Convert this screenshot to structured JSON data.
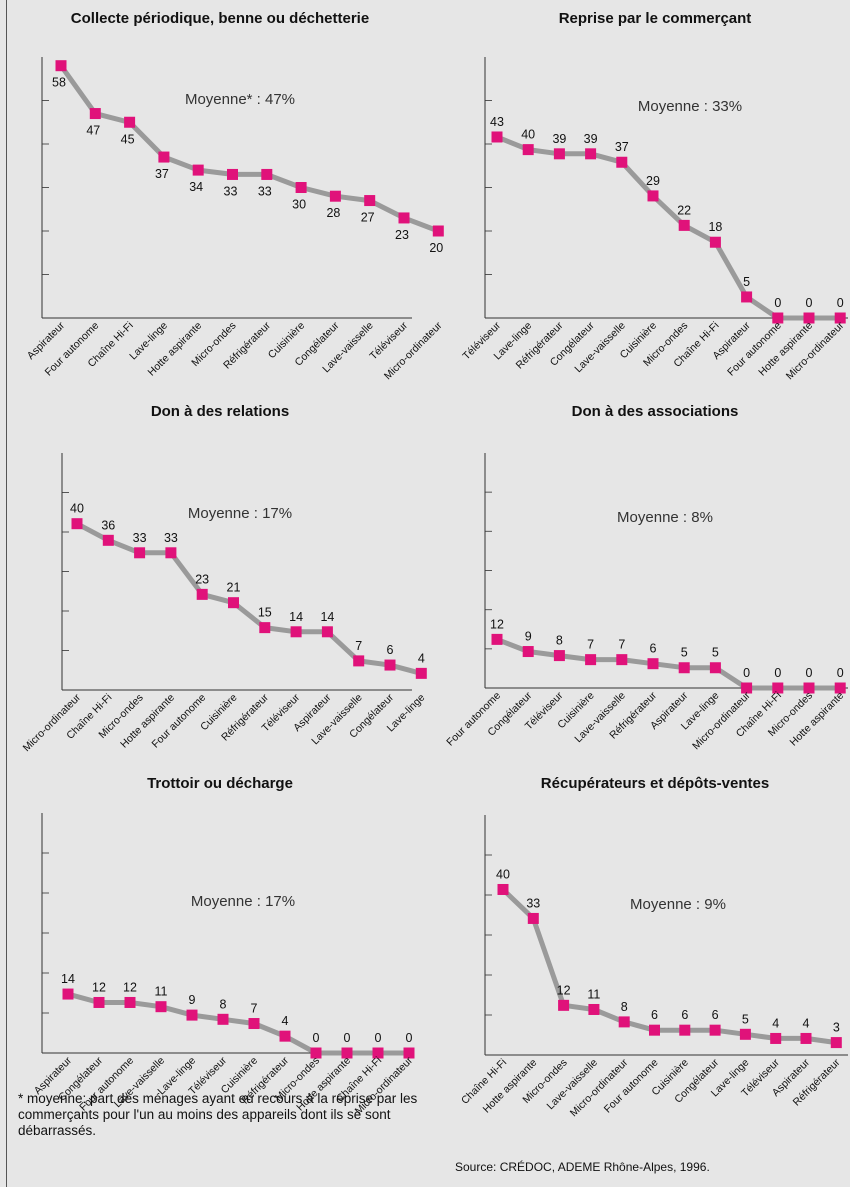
{
  "colors": {
    "line": "#9a9a9a",
    "marker": "#e0127a",
    "axis": "#333333",
    "grid": "#555555"
  },
  "footnote": "* moyenne: part des ménages ayant eu recours à la reprise par les commerçants pour l'un au moins des appareils dont ils se sont débarrassés.",
  "source": "Source: CRÉDOC, ADEME Rhône-Alpes, 1996.",
  "chart_data": [
    {
      "type": "line",
      "title": "Collecte périodique, benne ou déchetterie",
      "annotation": "Moyenne* : 47%",
      "ylim": [
        0,
        60
      ],
      "grid": true,
      "categories": [
        "Aspirateur",
        "Four autonome",
        "Chaîne Hi-Fi",
        "Lave-linge",
        "Hotte aspirante",
        "Micro-ondes",
        "Réfrigérateur",
        "Cuisinière",
        "Congélateur",
        "Lave-vaisselle",
        "Téléviseur",
        "Micro-ordinateur"
      ],
      "values": [
        58,
        47,
        45,
        37,
        34,
        33,
        33,
        30,
        28,
        27,
        23,
        20
      ]
    },
    {
      "type": "line",
      "title": "Reprise par le commerçant",
      "annotation": "Moyenne : 33%",
      "ylim": [
        0,
        62
      ],
      "grid": true,
      "categories": [
        "Téléviseur",
        "Lave-linge",
        "Réfrigérateur",
        "Congélateur",
        "Lave-vaisselle",
        "Cuisinière",
        "Micro-ondes",
        "Chaîne Hi-Fi",
        "Aspirateur",
        "Four autonome",
        "Hotte aspirante",
        "Micro-ordinateur"
      ],
      "values": [
        43,
        40,
        39,
        39,
        37,
        29,
        22,
        18,
        5,
        0,
        0,
        0
      ]
    },
    {
      "type": "line",
      "title": "Don à des relations",
      "annotation": "Moyenne : 17%",
      "ylim": [
        0,
        57
      ],
      "grid": true,
      "categories": [
        "Micro-ordinateur",
        "Chaîne Hi-Fi",
        "Micro-ondes",
        "Hotte aspirante",
        "Four autonome",
        "Cuisinière",
        "Réfrigérateur",
        "Téléviseur",
        "Aspirateur",
        "Lave-vaisselle",
        "Congélateur",
        "Lave-linge"
      ],
      "values": [
        40,
        36,
        33,
        33,
        23,
        21,
        15,
        14,
        14,
        7,
        6,
        4
      ]
    },
    {
      "type": "line",
      "title": "Don à des associations",
      "annotation": "Moyenne : 8%",
      "ylim": [
        0,
        58
      ],
      "grid": true,
      "categories": [
        "Four autonome",
        "Congélateur",
        "Téléviseur",
        "Cuisinière",
        "Lave-vaisselle",
        "Réfrigérateur",
        "Aspirateur",
        "Lave-linge",
        "Micro-ordinateur",
        "Chaîne Hi-Fi",
        "Micro-ondes",
        "Hotte aspirante"
      ],
      "values": [
        12,
        9,
        8,
        7,
        7,
        6,
        5,
        5,
        0,
        0,
        0,
        0
      ]
    },
    {
      "type": "line",
      "title": "Trottoir ou décharge",
      "annotation": "Moyenne : 17%",
      "ylim": [
        0,
        57
      ],
      "grid": true,
      "categories": [
        "Aspirateur",
        "Congélateur",
        "Four autonome",
        "Lave-vaisselle",
        "Lave-linge",
        "Téléviseur",
        "Cuisinière",
        "Réfrigérateur",
        "Micro-ondes",
        "Hotte aspirante",
        "Chaîne Hi-Fi",
        "Micro-ordinateur"
      ],
      "values": [
        14,
        12,
        12,
        11,
        9,
        8,
        7,
        4,
        0,
        0,
        0,
        0
      ]
    },
    {
      "type": "line",
      "title": "Récupérateurs et dépôts-ventes",
      "annotation": "Moyenne : 9%",
      "ylim": [
        0,
        58
      ],
      "grid": true,
      "categories": [
        "Chaîne Hi-Fi",
        "Hotte aspirante",
        "Micro-ondes",
        "Lave-vaisselle",
        "Micro-ordinateur",
        "Four autonome",
        "Cuisinière",
        "Congélateur",
        "Lave-linge",
        "Téléviseur",
        "Aspirateur",
        "Réfrigérateur"
      ],
      "values": [
        40,
        33,
        12,
        11,
        8,
        6,
        6,
        6,
        5,
        4,
        4,
        3
      ]
    }
  ]
}
